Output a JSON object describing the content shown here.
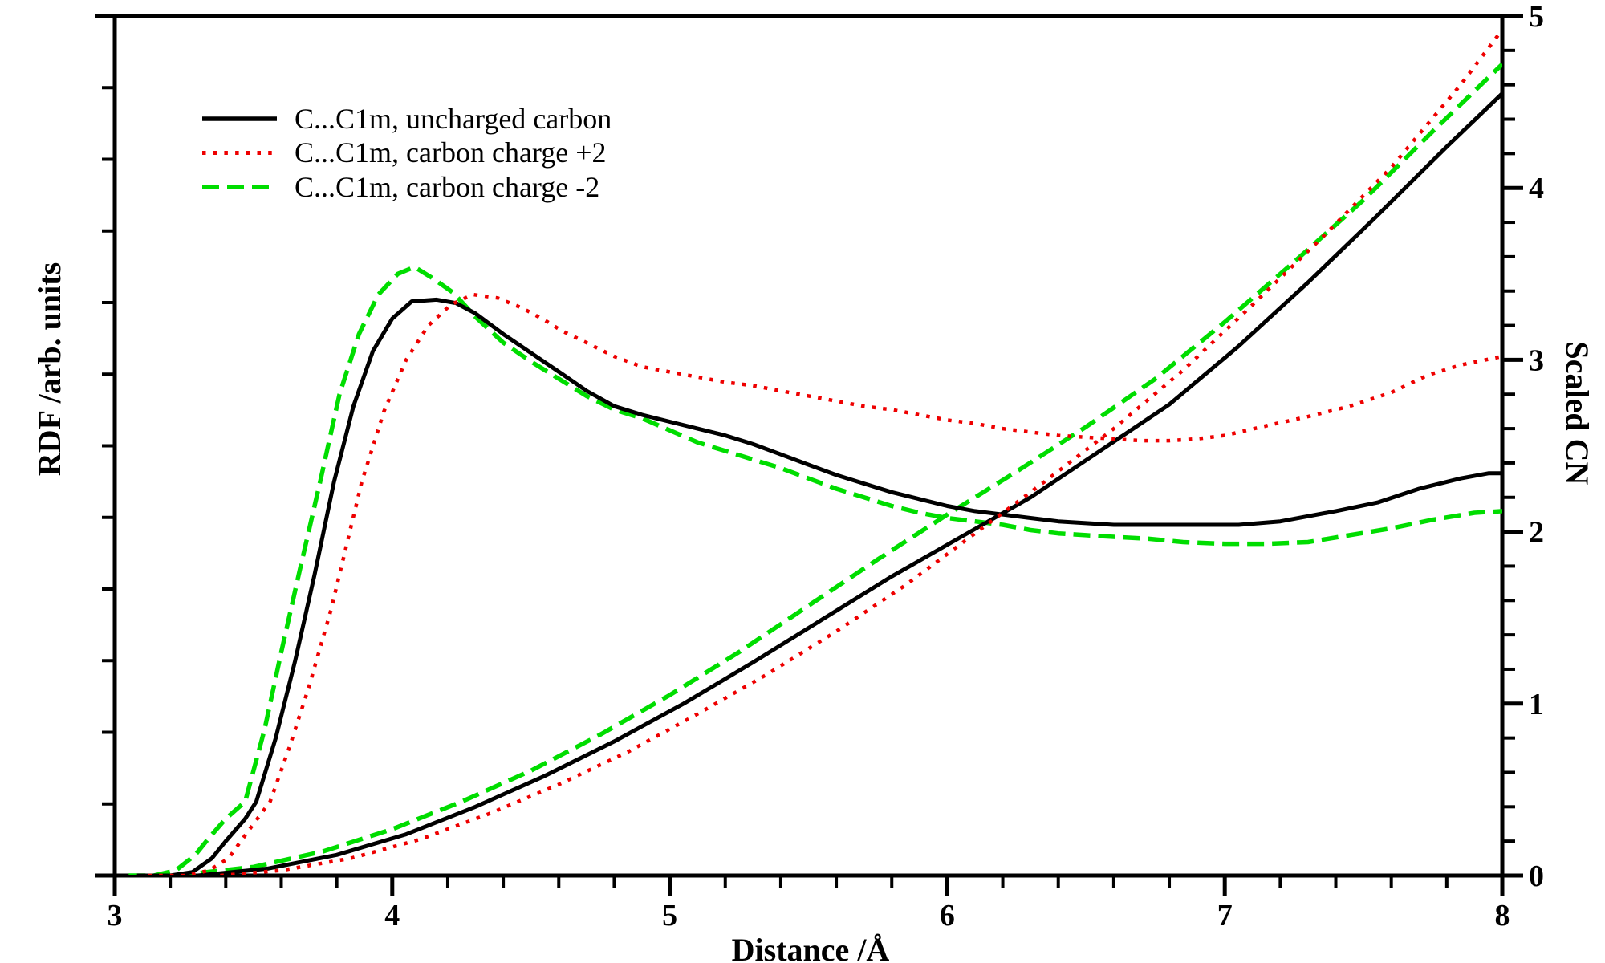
{
  "chart_data": {
    "type": "line",
    "title": "",
    "xlabel": "Distance /Å",
    "ylabel_left": "RDF /arb. units",
    "ylabel_right": "Scaled CN",
    "x_range": [
      3,
      8
    ],
    "x_major_step": 1,
    "x_minor_step": 0.2,
    "x_tick_labels": [
      "3",
      "4",
      "5",
      "6",
      "7",
      "8"
    ],
    "right_y_range": [
      0,
      5
    ],
    "right_major_step": 1,
    "right_minor_step": 0.2,
    "right_tick_labels": [
      "0",
      "1",
      "2",
      "3",
      "4",
      "5"
    ],
    "left_axis_minor_ticks": 11,
    "grid": false,
    "legend_position": "upper-left-inside",
    "note": "Left RDF axis is unlabeled (arbitrary units); all curve y-values below are given on the right-hand Scaled CN axis scale (0-5). Each legend entry has two curves: a peaked RDF curve and a monotonically rising scaled coordination-number curve.",
    "series": [
      {
        "id": "rdf_minus2",
        "set": "minus2",
        "kind": "RDF",
        "label": "C...C1m, carbon charge -2",
        "color": "#00dd00",
        "style": "dashed",
        "width": 5.5,
        "dash": "21 10",
        "points": [
          [
            3.05,
            0
          ],
          [
            3.14,
            0
          ],
          [
            3.22,
            0.03
          ],
          [
            3.29,
            0.12
          ],
          [
            3.34,
            0.22
          ],
          [
            3.4,
            0.33
          ],
          [
            3.47,
            0.43
          ],
          [
            3.54,
            0.85
          ],
          [
            3.6,
            1.3
          ],
          [
            3.67,
            1.8
          ],
          [
            3.74,
            2.29
          ],
          [
            3.81,
            2.8
          ],
          [
            3.88,
            3.15
          ],
          [
            3.95,
            3.38
          ],
          [
            4.02,
            3.5
          ],
          [
            4.08,
            3.54
          ],
          [
            4.15,
            3.47
          ],
          [
            4.22,
            3.39
          ],
          [
            4.3,
            3.25
          ],
          [
            4.4,
            3.1
          ],
          [
            4.5,
            2.99
          ],
          [
            4.61,
            2.88
          ],
          [
            4.7,
            2.79
          ],
          [
            4.8,
            2.71
          ],
          [
            4.9,
            2.66
          ],
          [
            5.0,
            2.59
          ],
          [
            5.1,
            2.52
          ],
          [
            5.2,
            2.47
          ],
          [
            5.3,
            2.42
          ],
          [
            5.4,
            2.37
          ],
          [
            5.5,
            2.31
          ],
          [
            5.6,
            2.25
          ],
          [
            5.7,
            2.2
          ],
          [
            5.8,
            2.15
          ],
          [
            5.9,
            2.11
          ],
          [
            6.0,
            2.08
          ],
          [
            6.1,
            2.06
          ],
          [
            6.2,
            2.04
          ],
          [
            6.3,
            2.01
          ],
          [
            6.4,
            1.99
          ],
          [
            6.5,
            1.98
          ],
          [
            6.6,
            1.97
          ],
          [
            6.72,
            1.96
          ],
          [
            6.85,
            1.94
          ],
          [
            7.0,
            1.93
          ],
          [
            7.15,
            1.93
          ],
          [
            7.3,
            1.94
          ],
          [
            7.45,
            1.98
          ],
          [
            7.6,
            2.02
          ],
          [
            7.75,
            2.07
          ],
          [
            7.9,
            2.11
          ],
          [
            8.0,
            2.12
          ]
        ]
      },
      {
        "id": "cn_minus2",
        "set": "minus2",
        "kind": "CN",
        "label": "C...C1m, carbon charge -2 (scaled CN)",
        "color": "#00dd00",
        "style": "dashed",
        "width": 5.5,
        "dash": "21 10",
        "points": [
          [
            3.22,
            0
          ],
          [
            3.5,
            0.05
          ],
          [
            3.75,
            0.14
          ],
          [
            4.0,
            0.27
          ],
          [
            4.25,
            0.43
          ],
          [
            4.5,
            0.61
          ],
          [
            4.75,
            0.82
          ],
          [
            5.0,
            1.05
          ],
          [
            5.25,
            1.3
          ],
          [
            5.5,
            1.57
          ],
          [
            5.75,
            1.84
          ],
          [
            6.0,
            2.1
          ],
          [
            6.25,
            2.35
          ],
          [
            6.5,
            2.61
          ],
          [
            6.75,
            2.89
          ],
          [
            7.0,
            3.22
          ],
          [
            7.25,
            3.57
          ],
          [
            7.5,
            3.93
          ],
          [
            7.75,
            4.33
          ],
          [
            8.0,
            4.72
          ]
        ]
      },
      {
        "id": "rdf_uncharged",
        "set": "uncharged",
        "kind": "RDF",
        "label": "C...C1m, uncharged carbon",
        "color": "#000000",
        "style": "solid",
        "width": 5,
        "dash": "none",
        "points": [
          [
            3.08,
            0
          ],
          [
            3.2,
            0
          ],
          [
            3.28,
            0.02
          ],
          [
            3.35,
            0.1
          ],
          [
            3.4,
            0.2
          ],
          [
            3.47,
            0.33
          ],
          [
            3.51,
            0.43
          ],
          [
            3.58,
            0.8
          ],
          [
            3.65,
            1.25
          ],
          [
            3.72,
            1.75
          ],
          [
            3.79,
            2.29
          ],
          [
            3.86,
            2.73
          ],
          [
            3.93,
            3.05
          ],
          [
            4.0,
            3.24
          ],
          [
            4.07,
            3.34
          ],
          [
            4.16,
            3.35
          ],
          [
            4.23,
            3.33
          ],
          [
            4.3,
            3.27
          ],
          [
            4.4,
            3.15
          ],
          [
            4.5,
            3.04
          ],
          [
            4.61,
            2.92
          ],
          [
            4.7,
            2.82
          ],
          [
            4.8,
            2.73
          ],
          [
            4.9,
            2.68
          ],
          [
            5.0,
            2.64
          ],
          [
            5.1,
            2.6
          ],
          [
            5.2,
            2.56
          ],
          [
            5.3,
            2.51
          ],
          [
            5.4,
            2.45
          ],
          [
            5.5,
            2.39
          ],
          [
            5.6,
            2.33
          ],
          [
            5.7,
            2.28
          ],
          [
            5.8,
            2.23
          ],
          [
            5.9,
            2.19
          ],
          [
            6.0,
            2.15
          ],
          [
            6.1,
            2.12
          ],
          [
            6.2,
            2.1
          ],
          [
            6.3,
            2.08
          ],
          [
            6.4,
            2.06
          ],
          [
            6.5,
            2.05
          ],
          [
            6.6,
            2.04
          ],
          [
            6.75,
            2.04
          ],
          [
            6.9,
            2.04
          ],
          [
            7.05,
            2.04
          ],
          [
            7.2,
            2.06
          ],
          [
            7.4,
            2.12
          ],
          [
            7.55,
            2.17
          ],
          [
            7.7,
            2.25
          ],
          [
            7.85,
            2.31
          ],
          [
            7.95,
            2.34
          ],
          [
            8.0,
            2.34
          ]
        ]
      },
      {
        "id": "cn_uncharged",
        "set": "uncharged",
        "kind": "CN",
        "label": "C...C1m, uncharged carbon (scaled CN)",
        "color": "#000000",
        "style": "solid",
        "width": 5,
        "dash": "none",
        "points": [
          [
            3.3,
            0
          ],
          [
            3.55,
            0.04
          ],
          [
            3.8,
            0.12
          ],
          [
            4.05,
            0.24
          ],
          [
            4.3,
            0.4
          ],
          [
            4.55,
            0.58
          ],
          [
            4.8,
            0.78
          ],
          [
            5.05,
            1.0
          ],
          [
            5.3,
            1.24
          ],
          [
            5.55,
            1.49
          ],
          [
            5.8,
            1.74
          ],
          [
            6.05,
            1.97
          ],
          [
            6.3,
            2.2
          ],
          [
            6.55,
            2.47
          ],
          [
            6.8,
            2.74
          ],
          [
            7.05,
            3.08
          ],
          [
            7.3,
            3.45
          ],
          [
            7.55,
            3.84
          ],
          [
            7.8,
            4.24
          ],
          [
            8.0,
            4.55
          ]
        ]
      },
      {
        "id": "rdf_plus2",
        "set": "plus2",
        "kind": "RDF",
        "label": "C...C1m, carbon charge +2",
        "color": "#ee0000",
        "style": "dotted",
        "width": 4.5,
        "dash": "4.5 9.2",
        "points": [
          [
            3.12,
            0
          ],
          [
            3.26,
            0
          ],
          [
            3.34,
            0.03
          ],
          [
            3.41,
            0.1
          ],
          [
            3.45,
            0.19
          ],
          [
            3.5,
            0.3
          ],
          [
            3.56,
            0.43
          ],
          [
            3.63,
            0.75
          ],
          [
            3.7,
            1.1
          ],
          [
            3.78,
            1.55
          ],
          [
            3.89,
            2.29
          ],
          [
            3.97,
            2.7
          ],
          [
            4.05,
            3.0
          ],
          [
            4.13,
            3.2
          ],
          [
            4.21,
            3.32
          ],
          [
            4.29,
            3.38
          ],
          [
            4.38,
            3.36
          ],
          [
            4.47,
            3.3
          ],
          [
            4.55,
            3.23
          ],
          [
            4.61,
            3.17
          ],
          [
            4.7,
            3.1
          ],
          [
            4.8,
            3.02
          ],
          [
            4.9,
            2.96
          ],
          [
            5.0,
            2.93
          ],
          [
            5.1,
            2.9
          ],
          [
            5.2,
            2.87
          ],
          [
            5.3,
            2.85
          ],
          [
            5.4,
            2.82
          ],
          [
            5.5,
            2.79
          ],
          [
            5.6,
            2.76
          ],
          [
            5.7,
            2.73
          ],
          [
            5.8,
            2.71
          ],
          [
            5.9,
            2.68
          ],
          [
            6.0,
            2.65
          ],
          [
            6.1,
            2.63
          ],
          [
            6.2,
            2.6
          ],
          [
            6.3,
            2.58
          ],
          [
            6.4,
            2.56
          ],
          [
            6.5,
            2.55
          ],
          [
            6.6,
            2.54
          ],
          [
            6.7,
            2.53
          ],
          [
            6.8,
            2.53
          ],
          [
            6.9,
            2.54
          ],
          [
            7.0,
            2.56
          ],
          [
            7.16,
            2.62
          ],
          [
            7.3,
            2.67
          ],
          [
            7.45,
            2.73
          ],
          [
            7.6,
            2.81
          ],
          [
            7.73,
            2.91
          ],
          [
            7.85,
            2.97
          ],
          [
            8.0,
            3.02
          ]
        ]
      },
      {
        "id": "cn_plus2",
        "set": "plus2",
        "kind": "CN",
        "label": "C...C1m, carbon charge +2 (scaled CN)",
        "color": "#ee0000",
        "style": "dotted",
        "width": 4.5,
        "dash": "4.5 9.2",
        "points": [
          [
            3.38,
            0
          ],
          [
            3.6,
            0.03
          ],
          [
            3.85,
            0.1
          ],
          [
            4.1,
            0.21
          ],
          [
            4.35,
            0.36
          ],
          [
            4.6,
            0.53
          ],
          [
            4.85,
            0.72
          ],
          [
            5.1,
            0.94
          ],
          [
            5.35,
            1.17
          ],
          [
            5.6,
            1.42
          ],
          [
            5.85,
            1.69
          ],
          [
            6.1,
            1.99
          ],
          [
            6.35,
            2.29
          ],
          [
            6.6,
            2.6
          ],
          [
            6.85,
            2.94
          ],
          [
            7.1,
            3.32
          ],
          [
            7.35,
            3.71
          ],
          [
            7.6,
            4.12
          ],
          [
            7.85,
            4.6
          ],
          [
            8.0,
            4.92
          ]
        ]
      }
    ],
    "legend": [
      {
        "label": "C...C1m, uncharged carbon",
        "series_id": "rdf_uncharged"
      },
      {
        "label": "C...C1m, carbon charge +2",
        "series_id": "rdf_plus2"
      },
      {
        "label": "C...C1m, carbon charge -2",
        "series_id": "rdf_minus2"
      }
    ]
  }
}
